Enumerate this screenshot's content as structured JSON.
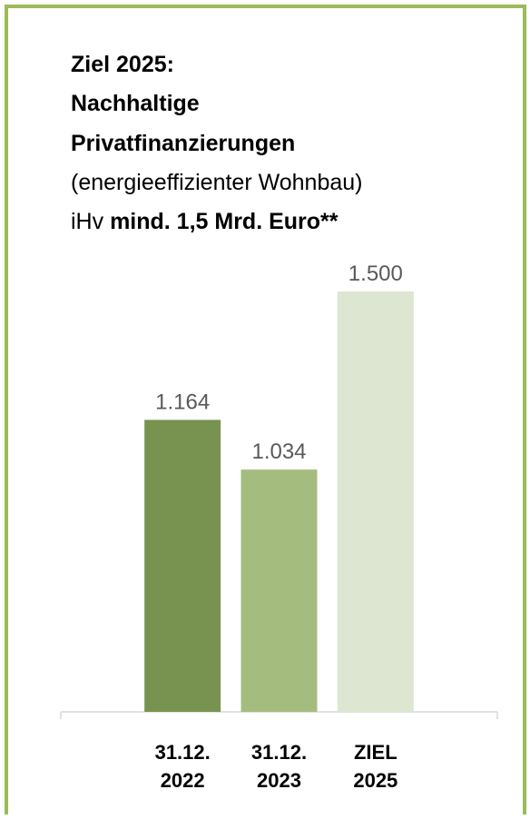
{
  "chart_data": {
    "type": "bar",
    "title": [
      "Ziel 2025:",
      "Nachhaltige",
      "Privatfinanzierungen"
    ],
    "subtitle": "(energieeffizienter Wohnbau)",
    "annotation": {
      "prefix": "iHv",
      "emphasis": "mind. 1,5 Mrd. Euro**"
    },
    "categories": [
      "31.12. 2022",
      "31.12. 2023",
      "ZIEL 2025"
    ],
    "values": [
      1164,
      1034,
      1500
    ],
    "value_labels": [
      "1.164",
      "1.034",
      "1.500"
    ],
    "colors": [
      "#77934f",
      "#a4bd7f",
      "#dce6d0"
    ],
    "ylim": [
      400,
      1500
    ]
  }
}
